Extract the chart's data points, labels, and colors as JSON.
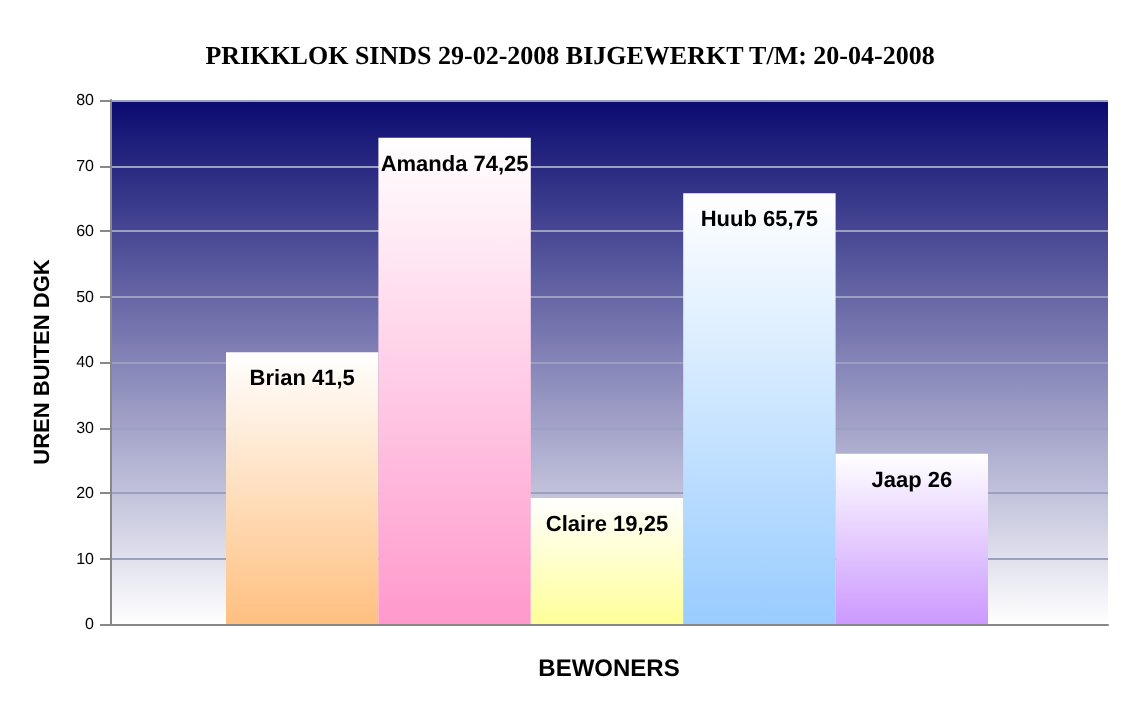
{
  "chart_data": {
    "type": "bar",
    "title": "PRIKKLOK SINDS 29-02-2008 BIJGEWERKT T/M: 20-04-2008",
    "xlabel": "BEWONERS",
    "ylabel": "UREN BUITEN DGK",
    "categories": [
      null,
      null,
      null,
      null,
      null
    ],
    "values": [
      41.5,
      74.25,
      19.25,
      65.75,
      26
    ],
    "colors": [
      "#ffc080",
      "#ff99cc",
      "#ffff99",
      "#99ccff",
      "#cc99ff"
    ],
    "value_labels": [
      "Brian 41,5",
      "Amanda 74,25",
      "Claire 19,25",
      "Huub 65,75",
      "Jaap 26"
    ],
    "ylim": [
      0,
      80
    ],
    "yticks": [
      0,
      10,
      20,
      30,
      40,
      50,
      60,
      70,
      80
    ],
    "grid": "y"
  }
}
